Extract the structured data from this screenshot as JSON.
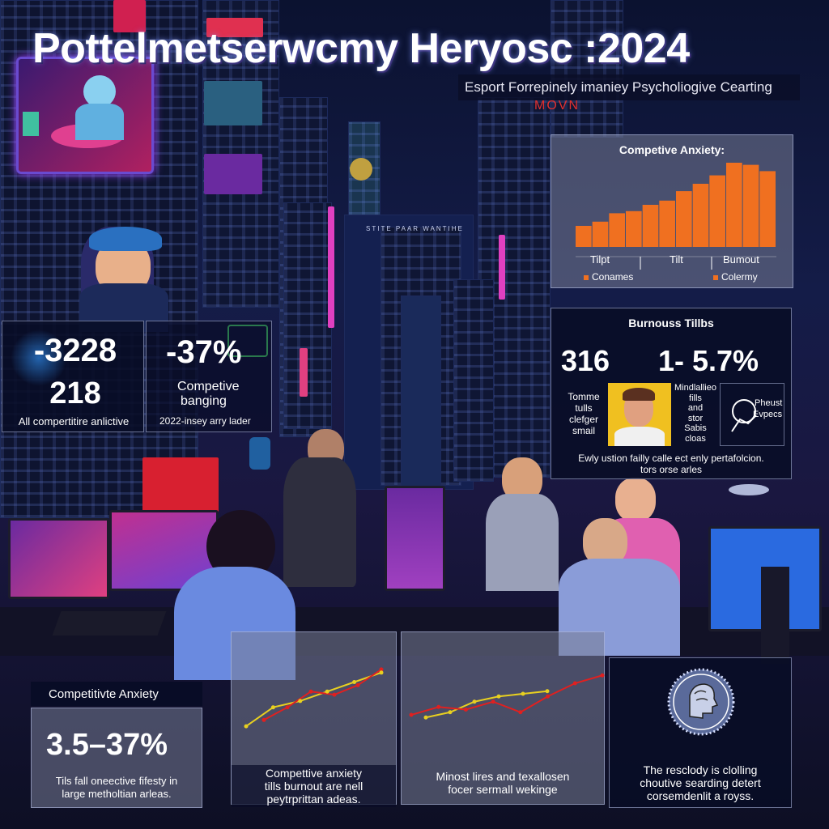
{
  "header": {
    "title": "Pottelmetserwcmy Heryosc :2024",
    "subtitle": "Esport Forrepinely imaniey Psycholiogive Cearting"
  },
  "signs": {
    "movn": "MOVN",
    "tower": "STITE PAAR WANTIHE"
  },
  "stats_left": {
    "value_a": "-3228",
    "value_b": "218",
    "caption": "All compertitire anlictive"
  },
  "stats_mid": {
    "value": "-37%",
    "label_line1": "Competive",
    "label_line2": "banging",
    "caption": "2022-insey arry lader"
  },
  "anxiety_chart": {
    "title": "Competive Anxiety:",
    "xticks": [
      "Tilpt",
      "Tilt",
      "Bumout"
    ],
    "legend": [
      "Conames",
      "Colermy"
    ],
    "color": "#f07020"
  },
  "chart_data": {
    "type": "bar",
    "title": "Competive Anxiety:",
    "values": [
      20,
      24,
      32,
      34,
      40,
      44,
      53,
      60,
      68,
      80,
      78,
      72
    ],
    "ylim": [
      0,
      100
    ],
    "xticks": [
      "Tilpt",
      "Tilt",
      "Bumout"
    ],
    "legend": [
      "Conames",
      "Colermy"
    ]
  },
  "burnout_panel": {
    "title": "Burnouss Tillbs",
    "value_a": "316",
    "value_b": "1- 5.7%",
    "left_text": [
      "Tomme",
      "tulls",
      "clefger",
      "smail"
    ],
    "mid_text": [
      "Mindlallieo",
      "fills",
      "and",
      "stor",
      "Sabis",
      "cloas"
    ],
    "right_text": [
      "Pheust",
      "Evpecs"
    ],
    "caption_line1": "Ewly ustion failly calle ect enly pertafolcion.",
    "caption_line2": "tors orse arles"
  },
  "anxiety_box": {
    "label": "Competitivte Anxiety",
    "value": "3.5–37%",
    "caption_line1": "Tils fall oneective fifesty in",
    "caption_line2": "large metholtian arleas."
  },
  "line_chart_1": {
    "caption_line1": "Compettive anxiety",
    "caption_line2": "tills burnout are nell",
    "caption_line3": "peytrprittan adeas.",
    "series_red": [
      0.15,
      0.35,
      0.6,
      0.55,
      0.7,
      0.95
    ],
    "series_yellow": [
      0.05,
      0.35,
      0.45,
      0.6,
      0.75,
      0.9
    ]
  },
  "line_chart_2": {
    "caption_line1": "Minost lires and texallosen",
    "caption_line2": "focer sermall wekinge",
    "series_red": [
      0.2,
      0.35,
      0.3,
      0.45,
      0.25,
      0.55,
      0.8,
      0.95
    ],
    "series_yellow": [
      0.15,
      0.25,
      0.45,
      0.55,
      0.6,
      0.65
    ]
  },
  "brain_box": {
    "caption_line1": "The resclody is clolling",
    "caption_line2": "choutive searding detert",
    "caption_line3": "corsemdenlit a royss."
  },
  "colors": {
    "accent_orange": "#f07020",
    "line_red": "#e02020",
    "line_yellow": "#e8d020",
    "neon_pink": "#e040c0",
    "neon_blue": "#4080ff"
  }
}
